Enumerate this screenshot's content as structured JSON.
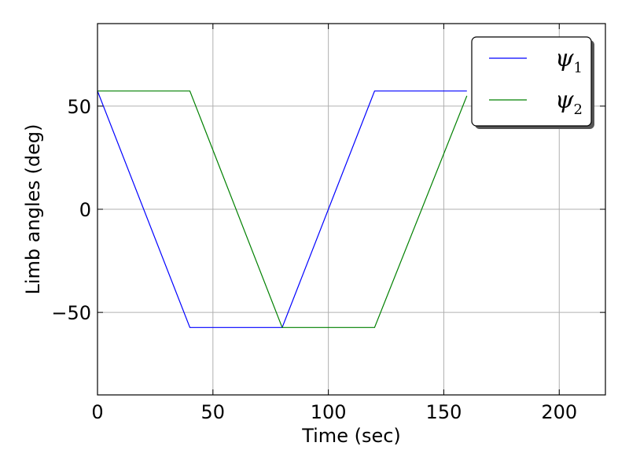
{
  "chart_data": {
    "type": "line",
    "title": "",
    "xlabel": "Time (sec)",
    "ylabel": "Limb angles (deg)",
    "xlim": [
      0,
      220
    ],
    "ylim": [
      -90,
      90
    ],
    "xticks": [
      0,
      50,
      100,
      150,
      200
    ],
    "xtick_labels": [
      "0",
      "50",
      "100",
      "150",
      "200"
    ],
    "yticks": [
      -50,
      0,
      50
    ],
    "ytick_labels": [
      "−50",
      "0",
      "50"
    ],
    "grid": true,
    "legend_position": "top-right",
    "series": [
      {
        "name": "ψ",
        "subscript": "1",
        "color": "#0000ff",
        "x": [
          0,
          40,
          80,
          120,
          160
        ],
        "y": [
          57.3,
          -57.3,
          -57.3,
          57.3,
          57.3
        ]
      },
      {
        "name": "ψ",
        "subscript": "2",
        "color": "#008000",
        "x": [
          0,
          40,
          80,
          120,
          160
        ],
        "y": [
          57.3,
          57.3,
          -57.3,
          -57.3,
          55.0
        ]
      }
    ]
  }
}
